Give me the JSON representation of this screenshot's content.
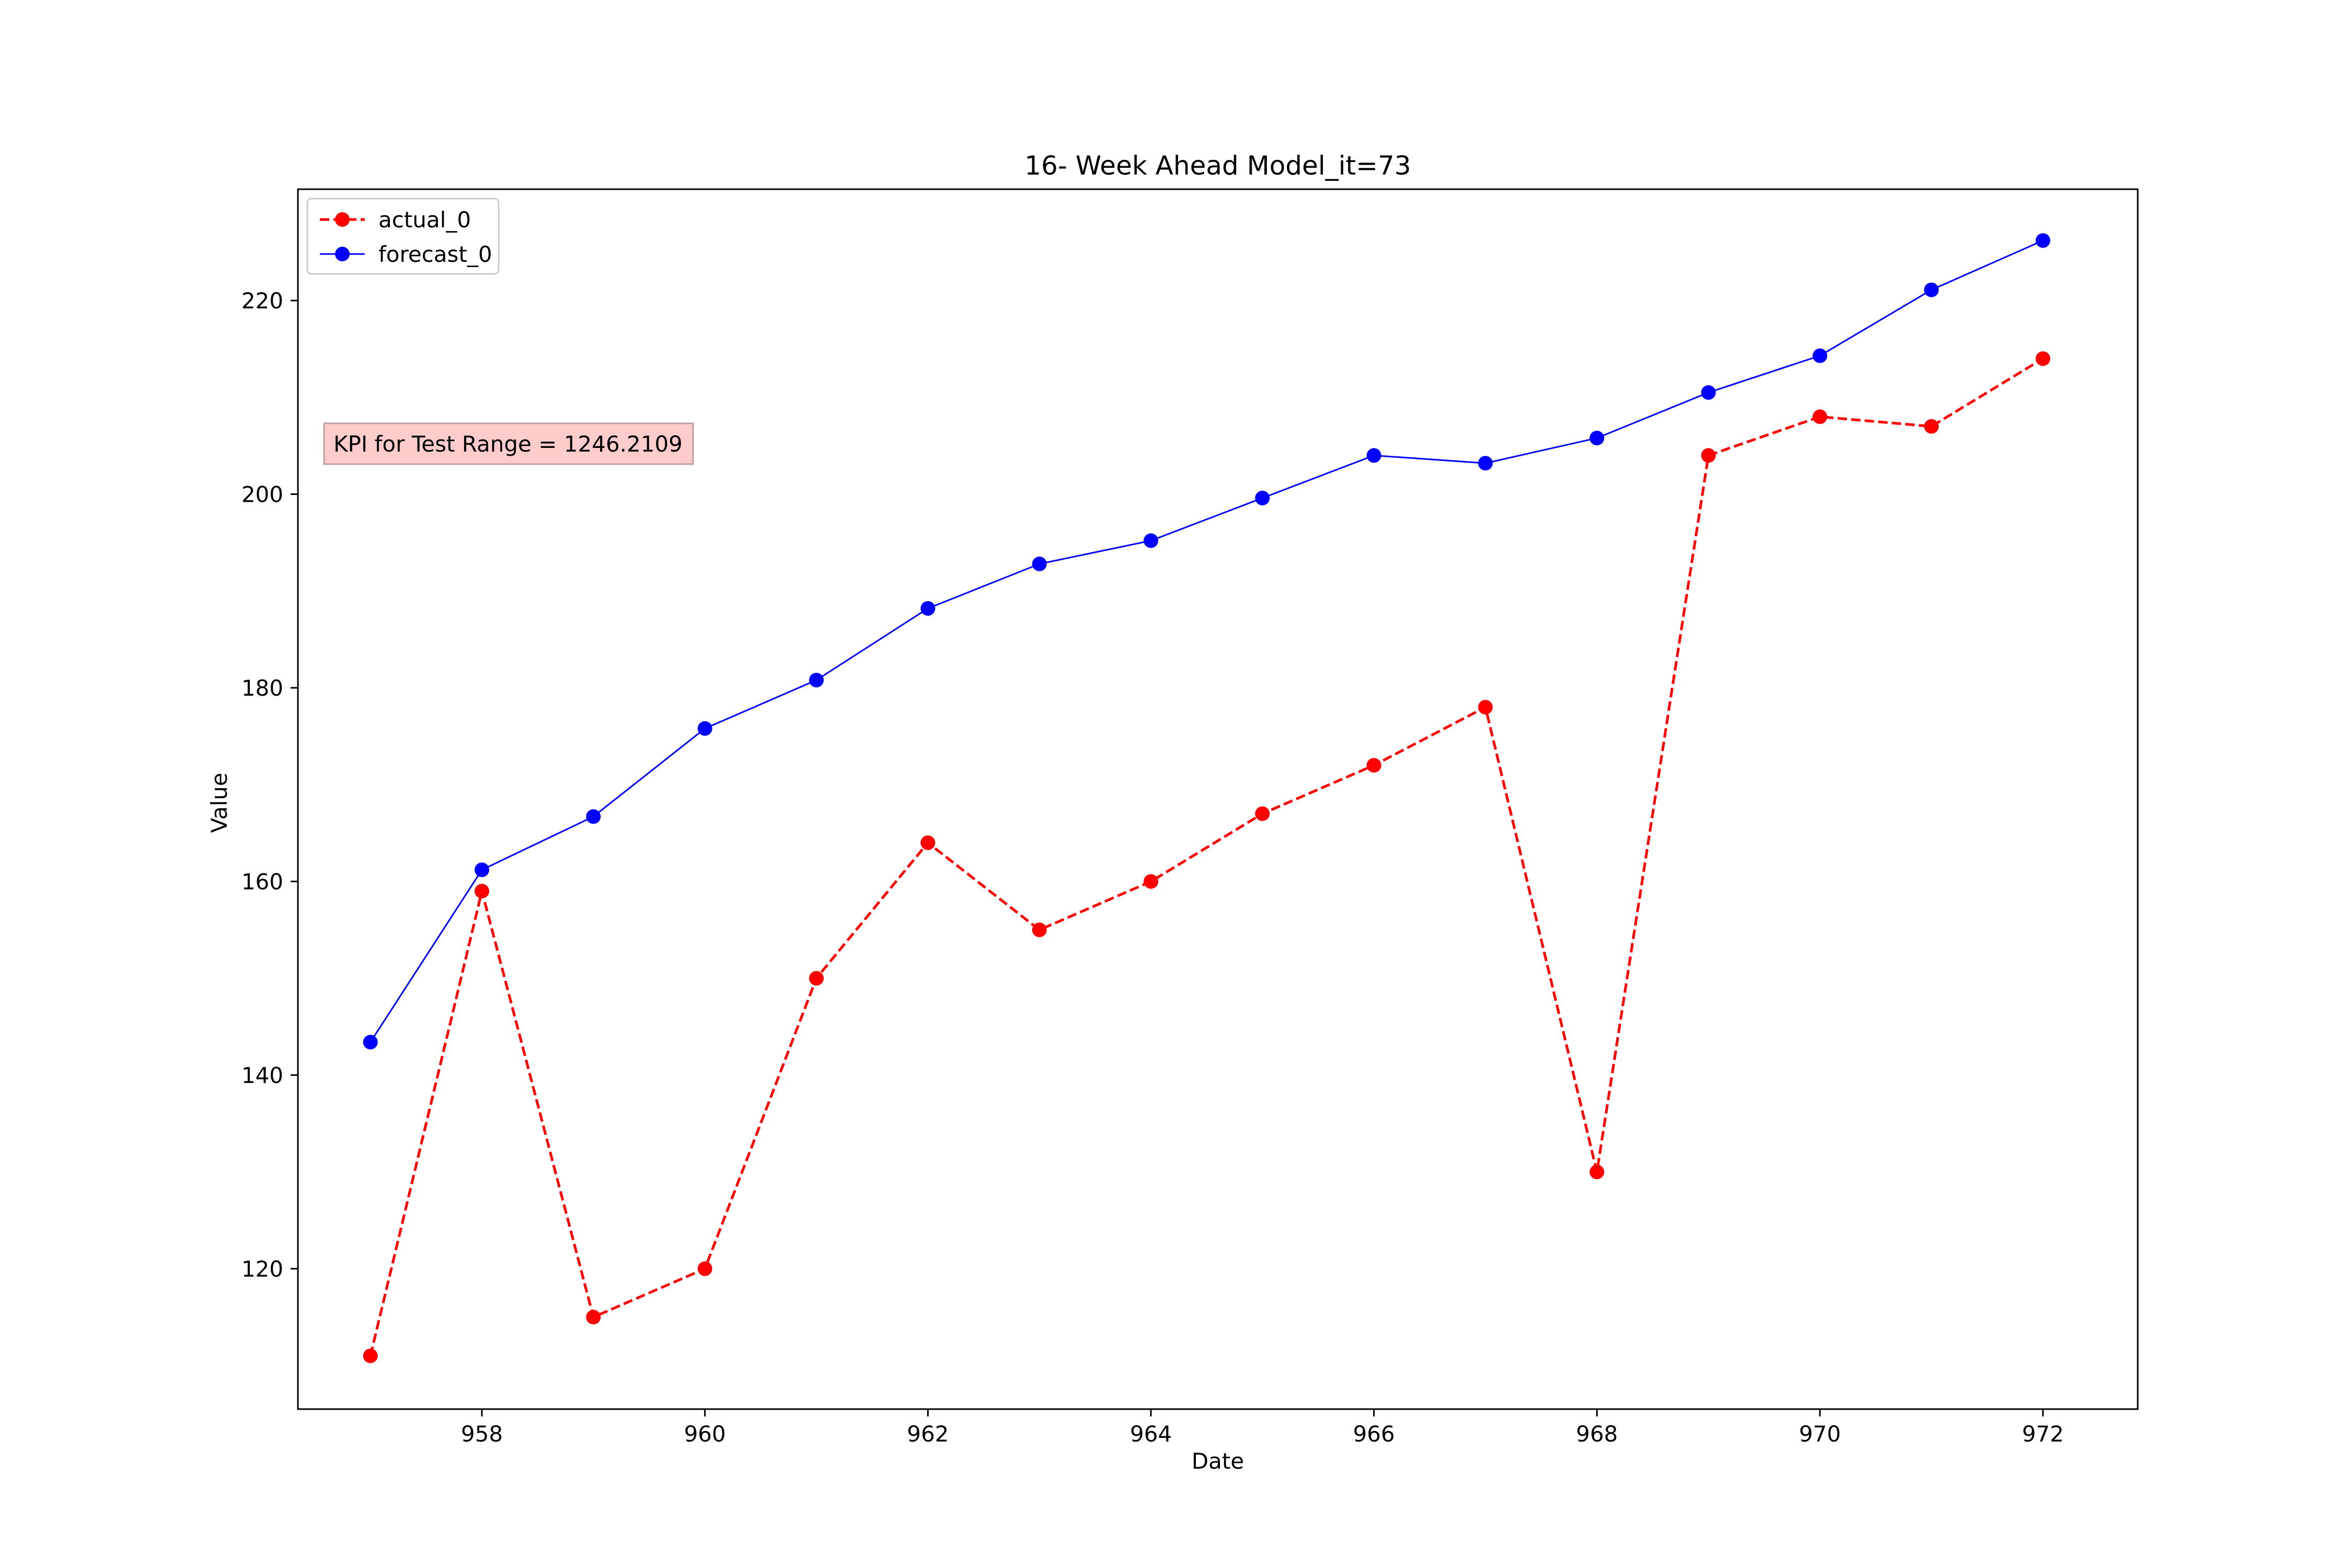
{
  "chart_data": {
    "type": "line",
    "title": "16- Week Ahead Model_it=73",
    "xlabel": "Date",
    "ylabel": "Value",
    "xlim": [
      956.35,
      972.85
    ],
    "ylim": [
      105.5,
      231.5
    ],
    "xticks": [
      958,
      960,
      962,
      964,
      966,
      968,
      970,
      972
    ],
    "yticks": [
      120,
      140,
      160,
      180,
      200,
      220
    ],
    "grid": false,
    "legend": {
      "position": "top-left"
    },
    "x": [
      957,
      958,
      959,
      960,
      961,
      962,
      963,
      964,
      965,
      966,
      967,
      968,
      969,
      970,
      971,
      972
    ],
    "series": [
      {
        "name": "actual_0",
        "color": "#ff0000",
        "line_style": "dashed",
        "marker": "circle",
        "values": [
          111,
          159,
          115,
          120,
          150,
          164,
          155,
          160,
          167,
          172,
          178,
          130,
          204,
          208,
          207,
          214
        ]
      },
      {
        "name": "forecast_0",
        "color": "#0000ff",
        "line_style": "solid",
        "marker": "circle",
        "values": [
          143.4,
          161.2,
          166.7,
          175.8,
          180.8,
          188.2,
          192.8,
          195.2,
          199.6,
          204.0,
          203.2,
          205.8,
          210.5,
          214.3,
          221.1,
          226.2
        ]
      }
    ],
    "annotation": {
      "text": "KPI for Test Range = 1246.2109",
      "background": "#ffcccc"
    }
  }
}
